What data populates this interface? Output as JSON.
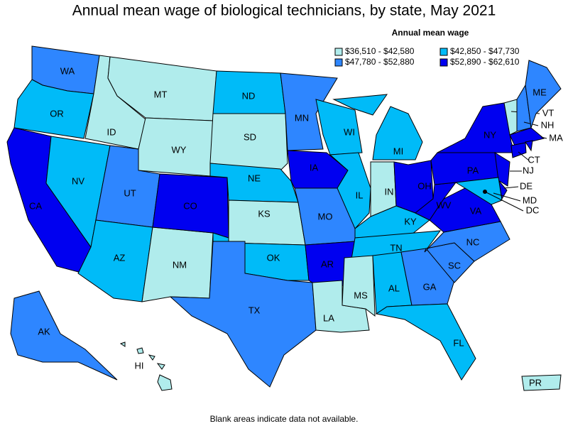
{
  "header": {
    "title": "Annual mean wage of biological technicians, by state, May 2021"
  },
  "legend": {
    "title": "Annual mean wage",
    "items": [
      {
        "label": "$36,510 - $42,580",
        "color": "#b0ecec"
      },
      {
        "label": "$42,850 - $47,730",
        "color": "#00bbf8"
      },
      {
        "label": "$47,780 - $52,880",
        "color": "#2e86ff"
      },
      {
        "label": "$52,890 - $62,610",
        "color": "#0000f0"
      }
    ]
  },
  "states": [
    {
      "abbr": "WA",
      "class": 2
    },
    {
      "abbr": "OR",
      "class": 1
    },
    {
      "abbr": "CA",
      "class": 3
    },
    {
      "abbr": "NV",
      "class": 1
    },
    {
      "abbr": "ID",
      "class": 0
    },
    {
      "abbr": "MT",
      "class": 0
    },
    {
      "abbr": "WY",
      "class": 0
    },
    {
      "abbr": "UT",
      "class": 2
    },
    {
      "abbr": "AZ",
      "class": 1
    },
    {
      "abbr": "NM",
      "class": 0
    },
    {
      "abbr": "CO",
      "class": 3
    },
    {
      "abbr": "ND",
      "class": 1
    },
    {
      "abbr": "SD",
      "class": 0
    },
    {
      "abbr": "NE",
      "class": 1
    },
    {
      "abbr": "KS",
      "class": 0
    },
    {
      "abbr": "OK",
      "class": 1
    },
    {
      "abbr": "TX",
      "class": 2
    },
    {
      "abbr": "MN",
      "class": 2
    },
    {
      "abbr": "IA",
      "class": 3
    },
    {
      "abbr": "MO",
      "class": 2
    },
    {
      "abbr": "AR",
      "class": 3
    },
    {
      "abbr": "LA",
      "class": 0
    },
    {
      "abbr": "WI",
      "class": 1
    },
    {
      "abbr": "IL",
      "class": 1
    },
    {
      "abbr": "MI",
      "class": 1
    },
    {
      "abbr": "IN",
      "class": 0
    },
    {
      "abbr": "OH",
      "class": 3
    },
    {
      "abbr": "KY",
      "class": 1
    },
    {
      "abbr": "TN",
      "class": 1
    },
    {
      "abbr": "MS",
      "class": 0
    },
    {
      "abbr": "AL",
      "class": 1
    },
    {
      "abbr": "GA",
      "class": 2
    },
    {
      "abbr": "FL",
      "class": 1
    },
    {
      "abbr": "SC",
      "class": 2
    },
    {
      "abbr": "NC",
      "class": 2
    },
    {
      "abbr": "VA",
      "class": 3
    },
    {
      "abbr": "WV",
      "class": 3
    },
    {
      "abbr": "PA",
      "class": 3
    },
    {
      "abbr": "NY",
      "class": 3
    },
    {
      "abbr": "NJ",
      "class": 3
    },
    {
      "abbr": "DE",
      "class": 3
    },
    {
      "abbr": "MD",
      "class": 1
    },
    {
      "abbr": "DC",
      "class": 3
    },
    {
      "abbr": "VT",
      "class": 0
    },
    {
      "abbr": "NH",
      "class": 2
    },
    {
      "abbr": "ME",
      "class": 2
    },
    {
      "abbr": "MA",
      "class": 3
    },
    {
      "abbr": "CT",
      "class": 3
    },
    {
      "abbr": "AK",
      "class": 2
    },
    {
      "abbr": "HI",
      "class": 0
    },
    {
      "abbr": "PR",
      "class": 0
    }
  ],
  "footer": {
    "note": "Blank areas indicate data not available."
  }
}
